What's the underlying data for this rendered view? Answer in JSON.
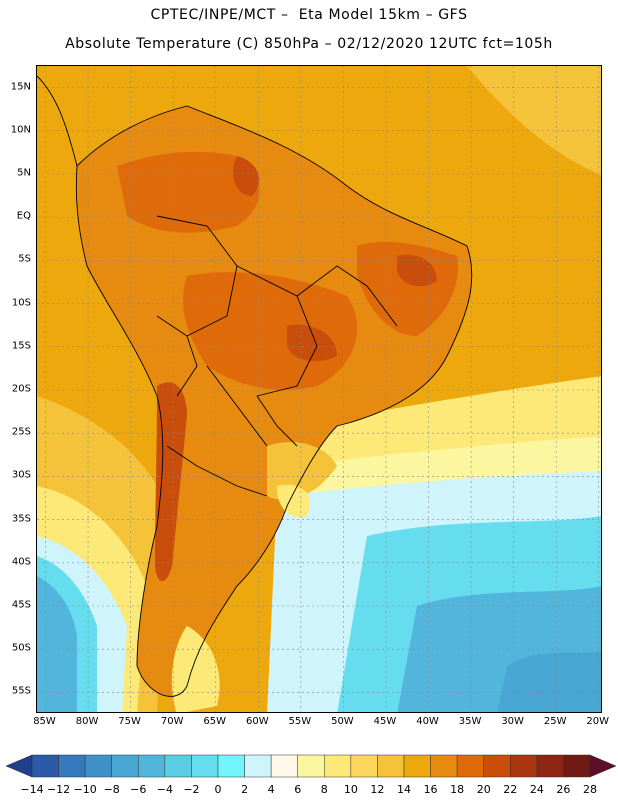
{
  "header": {
    "title_line1": "CPTEC/INPE/MCT –  Eta Model 15km – GFS",
    "title_line2": "Absolute Temperature (C) 850hPa – 02/12/2020 12UTC fct=105h"
  },
  "map": {
    "lat_labels": [
      "15N",
      "10N",
      "5N",
      "EQ",
      "5S",
      "10S",
      "15S",
      "20S",
      "25S",
      "30S",
      "35S",
      "40S",
      "45S",
      "50S",
      "55S"
    ],
    "lat_values": [
      15,
      10,
      5,
      0,
      -5,
      -10,
      -15,
      -20,
      -25,
      -30,
      -35,
      -40,
      -45,
      -50,
      -55
    ],
    "lon_labels": [
      "85W",
      "80W",
      "75W",
      "70W",
      "65W",
      "60W",
      "55W",
      "50W",
      "45W",
      "40W",
      "35W",
      "30W",
      "25W",
      "20W"
    ],
    "lon_values": [
      -85,
      -80,
      -75,
      -70,
      -65,
      -60,
      -55,
      -50,
      -45,
      -40,
      -35,
      -30,
      -25,
      -20
    ],
    "lon_range": [
      -86,
      -19.5
    ],
    "lat_range": [
      17.5,
      -57.5
    ]
  },
  "colorbar": {
    "labels": [
      "-14",
      "-12",
      "-10",
      "-8",
      "-6",
      "-4",
      "-2",
      "0",
      "2",
      "4",
      "6",
      "8",
      "10",
      "12",
      "14",
      "16",
      "18",
      "20",
      "22",
      "24",
      "26",
      "28"
    ],
    "colors": [
      "#1f3f8c",
      "#2a5aa8",
      "#3578bd",
      "#3f91c8",
      "#48a6d2",
      "#52b6dc",
      "#5ccbe4",
      "#66ddee",
      "#6ff5fb",
      "#cff4fc",
      "#fff8e8",
      "#fdf6a0",
      "#fde977",
      "#fcd75c",
      "#f5c33a",
      "#eda80e",
      "#e68a10",
      "#df6a0a",
      "#c94e0b",
      "#ab3710",
      "#8c2514",
      "#701a14",
      "#5e0f28"
    ]
  }
}
